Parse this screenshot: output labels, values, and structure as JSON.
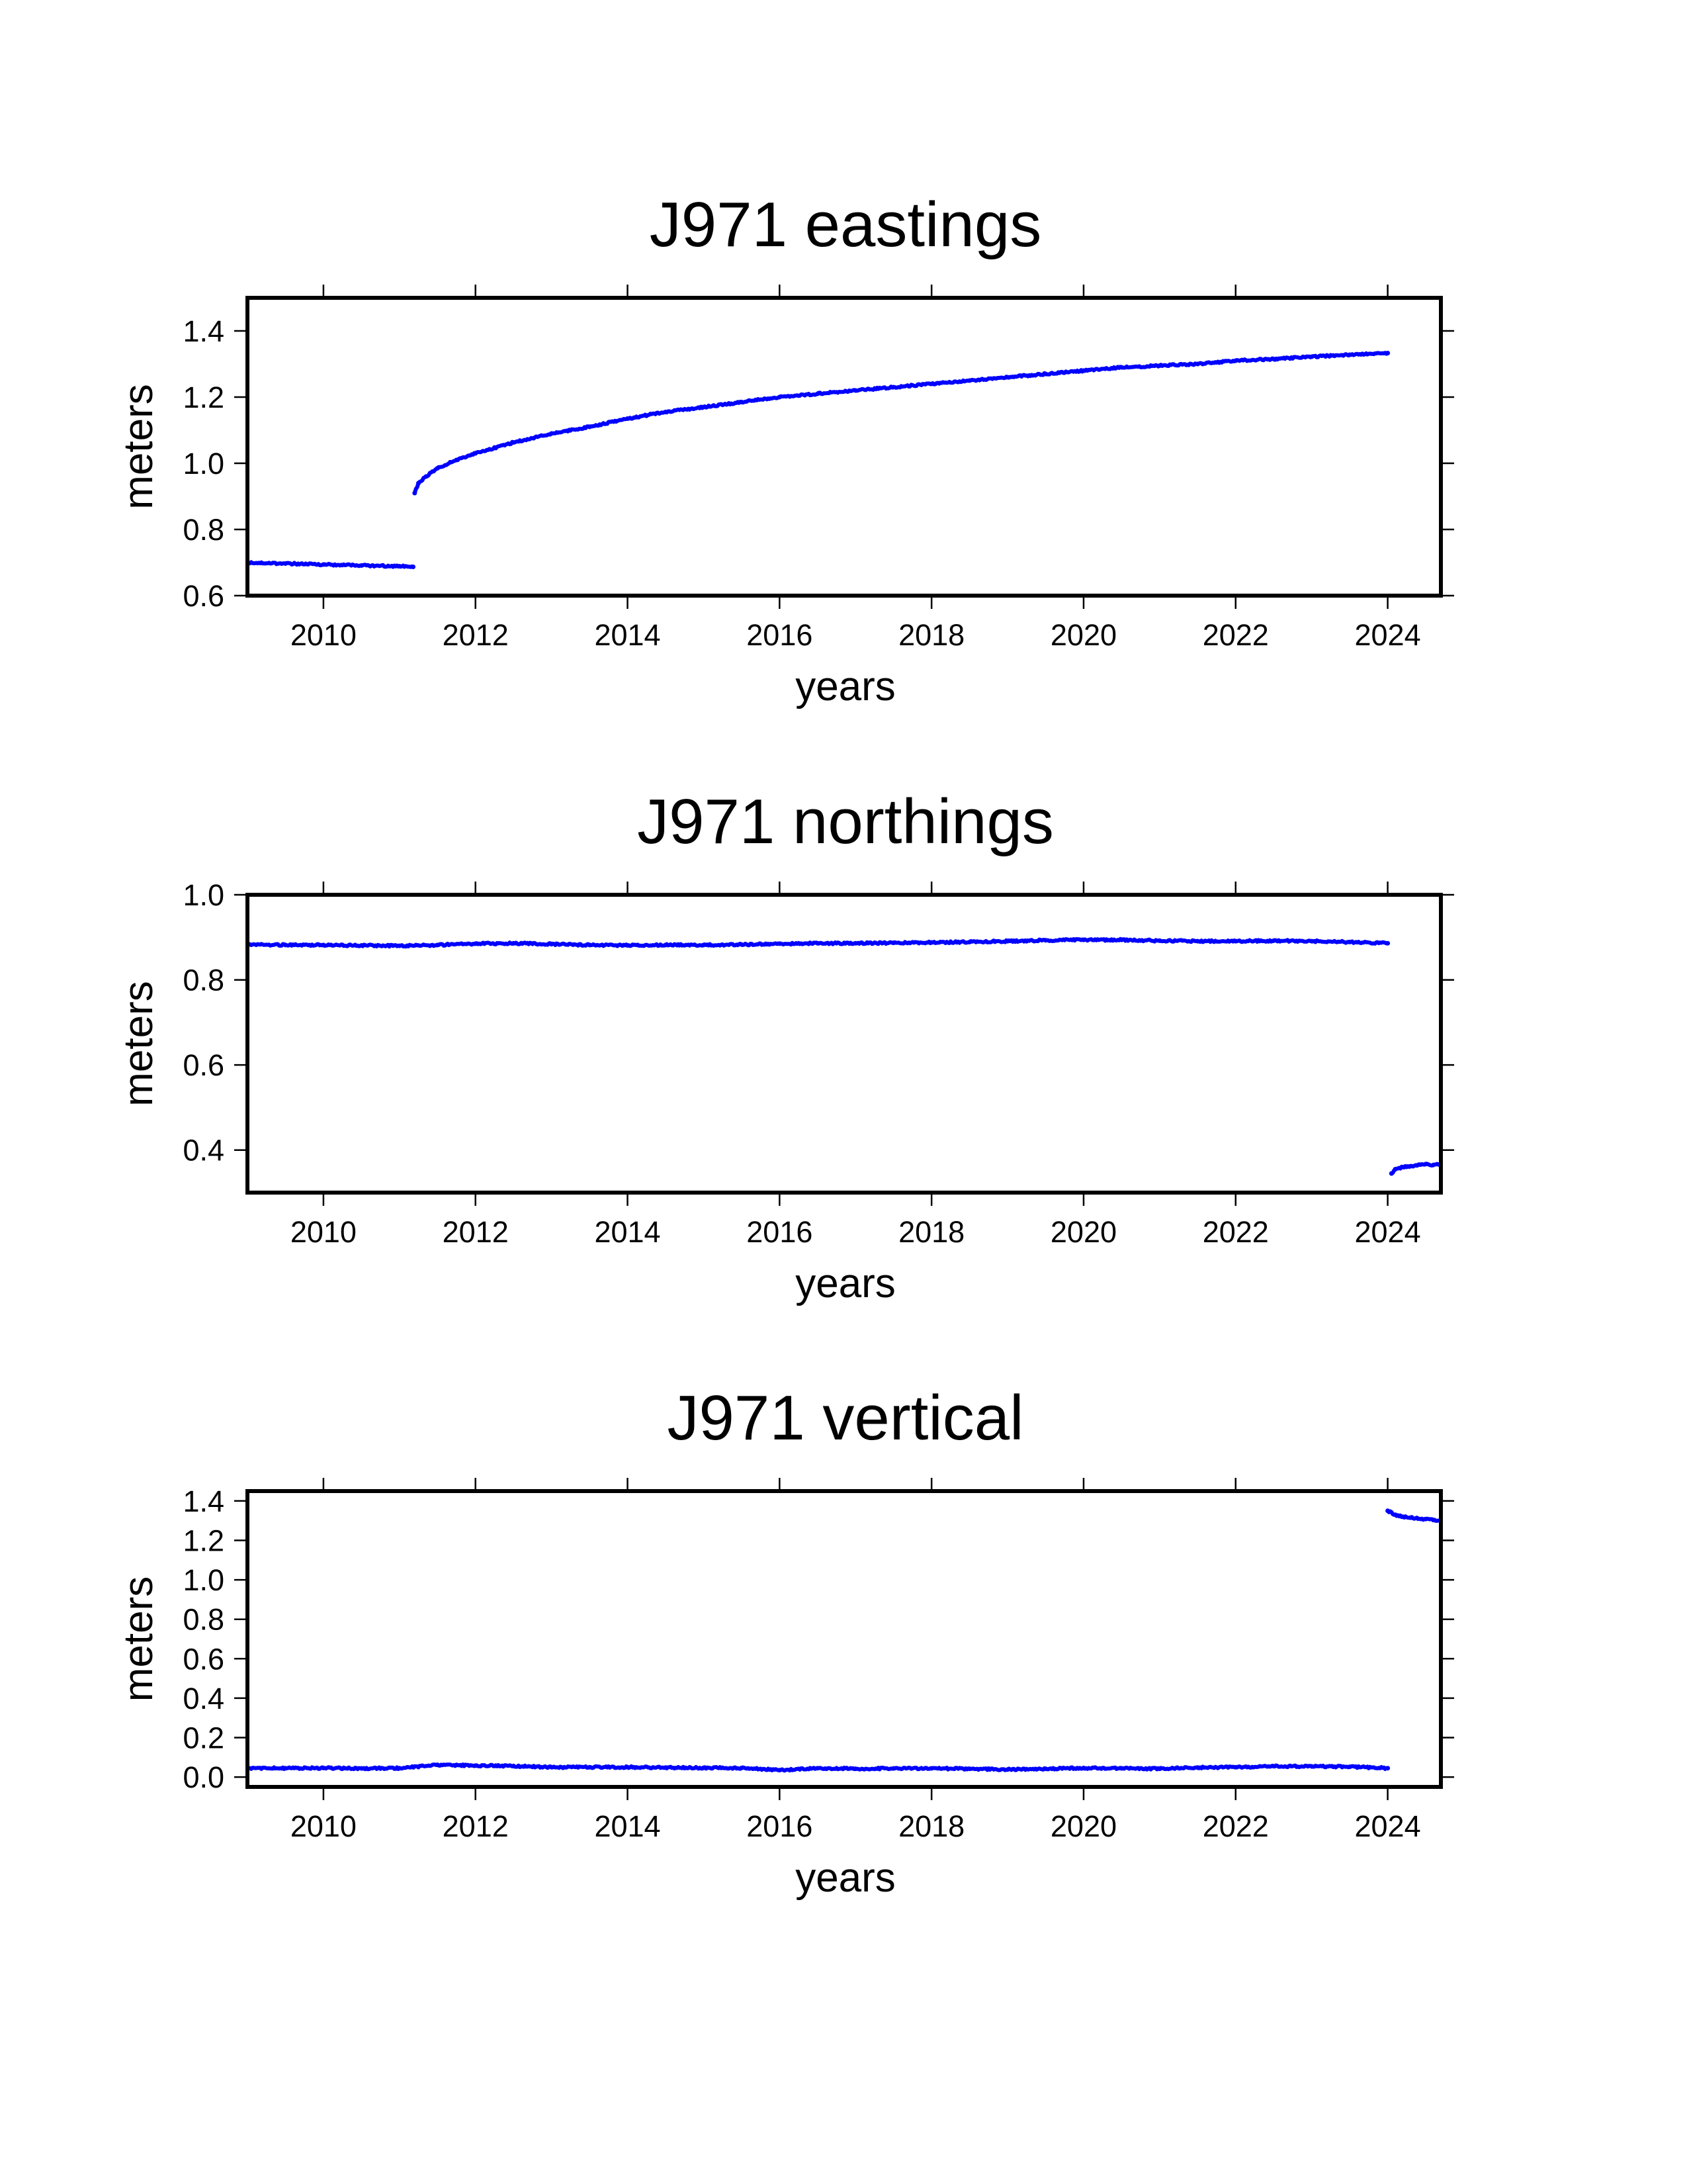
{
  "series_color": "#0000ff",
  "chart_data": [
    {
      "type": "scatter",
      "title": "J971 eastings",
      "xlabel": "years",
      "ylabel": "meters",
      "xlim": [
        2009.0,
        2024.7
      ],
      "ylim": [
        0.6,
        1.5
      ],
      "xticks": [
        2010,
        2012,
        2014,
        2016,
        2018,
        2020,
        2022,
        2024
      ],
      "xtick_labels": [
        "2010",
        "2012",
        "2014",
        "2016",
        "2018",
        "2020",
        "2022",
        "2024"
      ],
      "yticks": [
        0.6,
        0.8,
        1.0,
        1.2,
        1.4
      ],
      "ytick_labels": [
        "0.6",
        "0.8",
        "1.0",
        "1.2",
        "1.4"
      ],
      "grid": false,
      "series": [
        {
          "x": [
            2009.0,
            2009.5,
            2010.0,
            2010.5,
            2011.0,
            2011.18
          ],
          "y": [
            0.7,
            0.697,
            0.694,
            0.691,
            0.689,
            0.687
          ]
        },
        {
          "x": [
            2011.2,
            2011.25,
            2011.35,
            2011.5,
            2011.75,
            2012.0,
            2012.5,
            2013.0,
            2013.5,
            2014.0,
            2014.5,
            2015.0,
            2015.5,
            2016.0,
            2016.5,
            2017.0,
            2017.5,
            2018.0,
            2018.5,
            2019.0,
            2019.5,
            2020.0,
            2020.5,
            2021.0,
            2021.5,
            2022.0,
            2022.5,
            2023.0,
            2023.5,
            2024.0
          ],
          "y": [
            0.91,
            0.94,
            0.96,
            0.985,
            1.01,
            1.03,
            1.063,
            1.09,
            1.11,
            1.135,
            1.155,
            1.17,
            1.185,
            1.2,
            1.21,
            1.22,
            1.23,
            1.24,
            1.25,
            1.26,
            1.27,
            1.28,
            1.29,
            1.295,
            1.3,
            1.31,
            1.315,
            1.322,
            1.328,
            1.333
          ]
        }
      ]
    },
    {
      "type": "scatter",
      "title": "J971 northings",
      "xlabel": "years",
      "ylabel": "meters",
      "xlim": [
        2009.0,
        2024.7
      ],
      "ylim": [
        0.3,
        1.0
      ],
      "xticks": [
        2010,
        2012,
        2014,
        2016,
        2018,
        2020,
        2022,
        2024
      ],
      "xtick_labels": [
        "2010",
        "2012",
        "2014",
        "2016",
        "2018",
        "2020",
        "2022",
        "2024"
      ],
      "yticks": [
        0.4,
        0.6,
        0.8,
        1.0
      ],
      "ytick_labels": [
        "0.4",
        "0.6",
        "0.8",
        "1.0"
      ],
      "grid": false,
      "series": [
        {
          "x": [
            2009.0,
            2009.5,
            2010.0,
            2010.5,
            2011.0,
            2011.5,
            2012.0,
            2012.5,
            2013.0,
            2013.5,
            2014.0,
            2014.5,
            2015.0,
            2015.5,
            2016.0,
            2016.5,
            2017.0,
            2017.5,
            2018.0,
            2018.5,
            2019.0,
            2019.5,
            2020.0,
            2020.5,
            2021.0,
            2021.5,
            2022.0,
            2022.5,
            2023.0,
            2023.5,
            2024.0
          ],
          "y": [
            0.883,
            0.882,
            0.882,
            0.881,
            0.88,
            0.882,
            0.885,
            0.886,
            0.884,
            0.882,
            0.881,
            0.882,
            0.882,
            0.883,
            0.885,
            0.886,
            0.886,
            0.887,
            0.888,
            0.889,
            0.891,
            0.893,
            0.894,
            0.894,
            0.892,
            0.891,
            0.891,
            0.892,
            0.891,
            0.889,
            0.886
          ]
        },
        {
          "x": [
            2024.05,
            2024.1,
            2024.2,
            2024.3,
            2024.4,
            2024.5,
            2024.6,
            2024.7
          ],
          "y": [
            0.345,
            0.355,
            0.36,
            0.362,
            0.365,
            0.367,
            0.365,
            0.366
          ]
        }
      ]
    },
    {
      "type": "scatter",
      "title": "J971 vertical",
      "xlabel": "years",
      "ylabel": "meters",
      "xlim": [
        2009.0,
        2024.7
      ],
      "ylim": [
        -0.05,
        1.45
      ],
      "xticks": [
        2010,
        2012,
        2014,
        2016,
        2018,
        2020,
        2022,
        2024
      ],
      "xtick_labels": [
        "2010",
        "2012",
        "2014",
        "2016",
        "2018",
        "2020",
        "2022",
        "2024"
      ],
      "yticks": [
        0.0,
        0.2,
        0.4,
        0.6,
        0.8,
        1.0,
        1.2,
        1.4
      ],
      "ytick_labels": [
        "0.0",
        "0.2",
        "0.4",
        "0.6",
        "0.8",
        "1.0",
        "1.2",
        "1.4"
      ],
      "grid": false,
      "series": [
        {
          "x": [
            2009.0,
            2009.5,
            2010.0,
            2010.5,
            2011.0,
            2011.5,
            2012.0,
            2012.5,
            2013.0,
            2013.5,
            2014.0,
            2014.5,
            2015.0,
            2015.5,
            2016.0,
            2016.5,
            2017.0,
            2017.5,
            2018.0,
            2018.5,
            2019.0,
            2019.5,
            2020.0,
            2020.5,
            2021.0,
            2021.5,
            2022.0,
            2022.5,
            2023.0,
            2023.5,
            2024.0
          ],
          "y": [
            0.045,
            0.045,
            0.046,
            0.044,
            0.045,
            0.062,
            0.058,
            0.056,
            0.05,
            0.05,
            0.05,
            0.048,
            0.047,
            0.046,
            0.035,
            0.045,
            0.042,
            0.044,
            0.044,
            0.042,
            0.038,
            0.042,
            0.046,
            0.044,
            0.042,
            0.048,
            0.05,
            0.055,
            0.054,
            0.052,
            0.045
          ]
        },
        {
          "x": [
            2024.0,
            2024.1,
            2024.2,
            2024.3,
            2024.4,
            2024.5,
            2024.6,
            2024.7
          ],
          "y": [
            1.35,
            1.33,
            1.32,
            1.315,
            1.31,
            1.308,
            1.303,
            1.3
          ]
        }
      ]
    }
  ]
}
